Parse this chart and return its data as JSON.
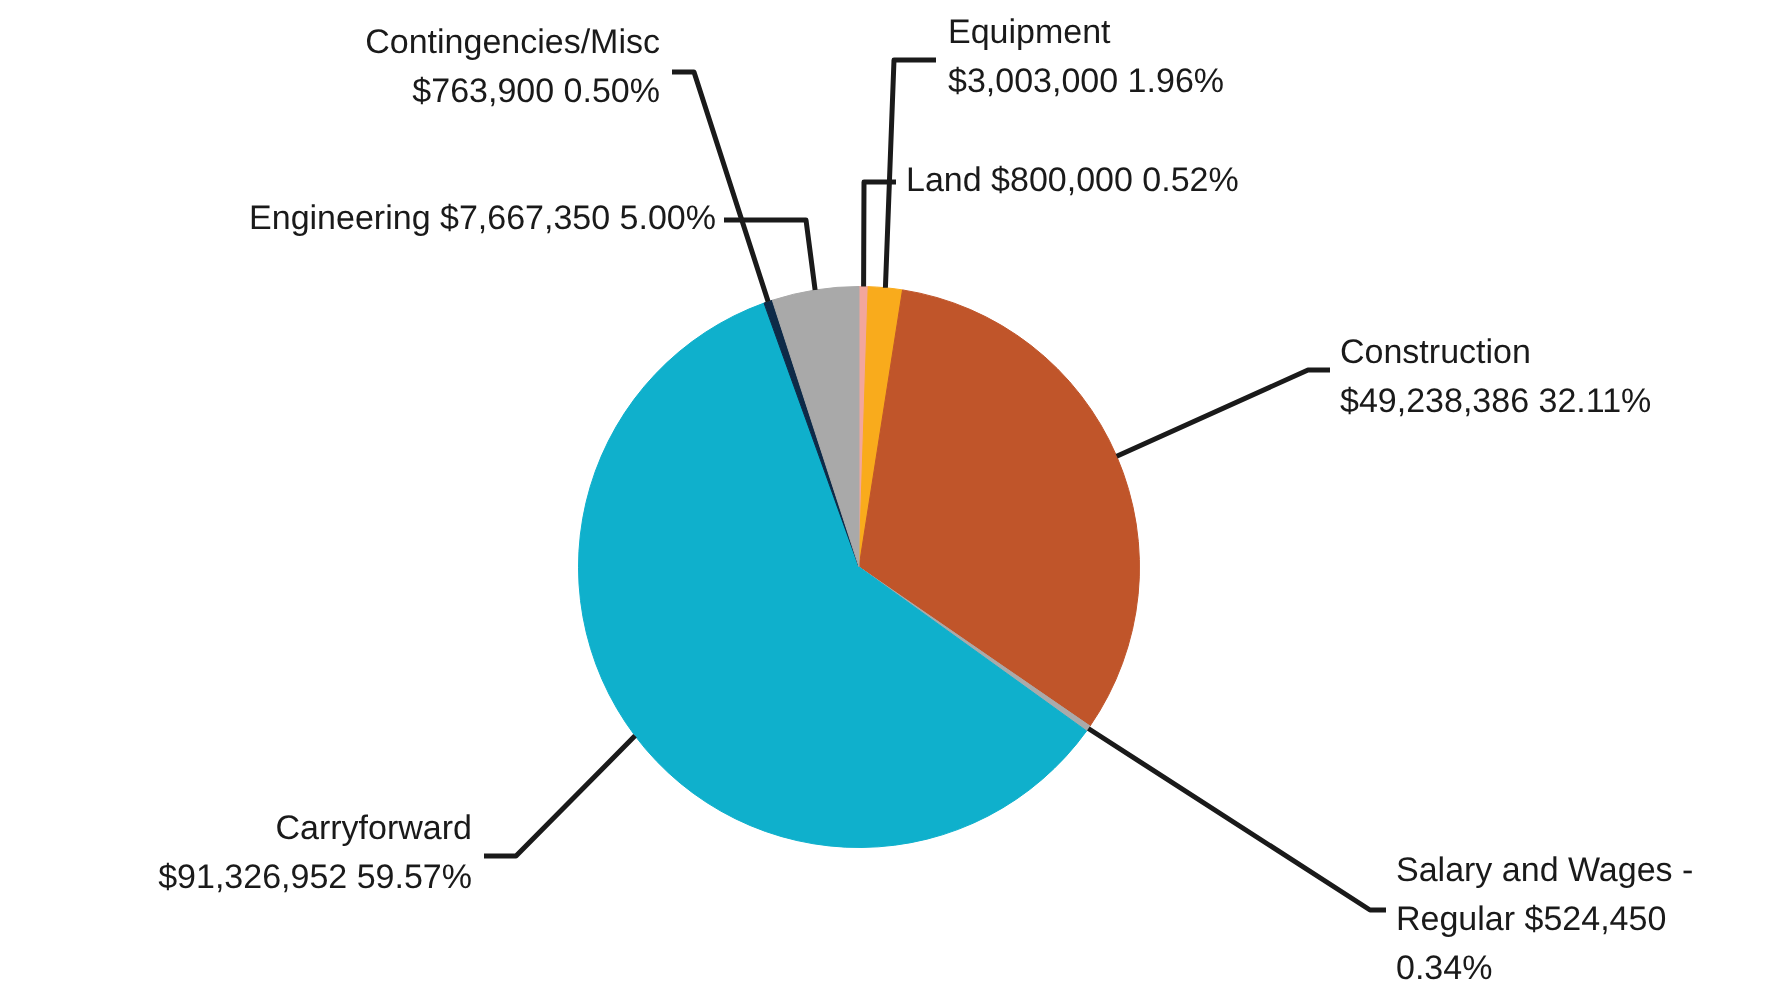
{
  "chart_data": {
    "type": "pie",
    "categories": [
      "Land",
      "Equipment",
      "Construction",
      "Salary and Wages - Regular",
      "Carryforward",
      "Contingencies/Misc",
      "Engineering"
    ],
    "values": [
      800000,
      3003000,
      49238386,
      524450,
      91326952,
      763900,
      7667350
    ],
    "value_labels": [
      "$800,000 0.52%",
      "$3,003,000 1.96%",
      "$49,238,386 32.11%",
      "$524,450 0.34%",
      "$91,326,952 59.57%",
      "$763,900 0.50%",
      "$7,667,350 5.00%"
    ],
    "colors": [
      "#f2a69c",
      "#f9ab1c",
      "#c0552a",
      "#aaaaaa",
      "#0fb0cc",
      "#0e2a48",
      "#a9a9a9"
    ],
    "legend": false
  }
}
